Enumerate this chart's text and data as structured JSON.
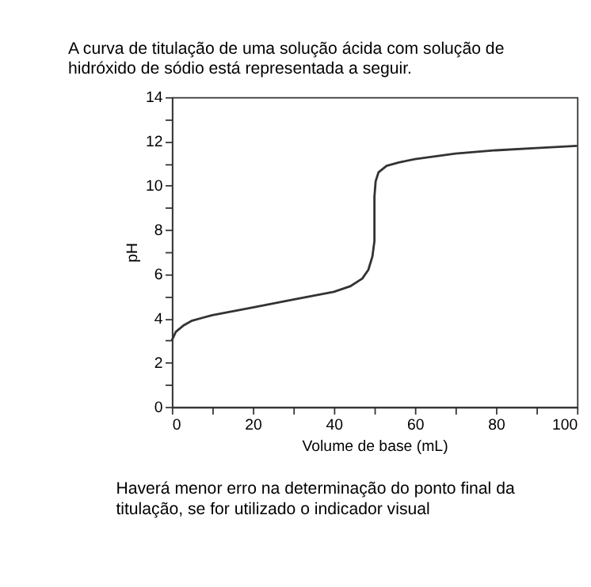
{
  "chart_data": {
    "type": "line",
    "title": "A curva de titulação de uma solução ácida com solução de hidróxido de sódio está representada a seguir.",
    "xlabel": "Volume de base (mL)",
    "ylabel": "pH",
    "x": [
      0,
      1,
      3,
      5,
      10,
      20,
      30,
      40,
      44,
      47,
      48.5,
      49.5,
      50,
      50,
      50,
      50.3,
      51,
      53,
      56,
      60,
      70,
      80,
      90,
      100
    ],
    "series": [
      {
        "color": "#333333",
        "values": [
          3.0,
          3.4,
          3.7,
          3.9,
          4.15,
          4.5,
          4.85,
          5.2,
          5.45,
          5.8,
          6.2,
          6.8,
          7.5,
          8.5,
          9.5,
          10.2,
          10.6,
          10.9,
          11.05,
          11.2,
          11.45,
          11.6,
          11.7,
          11.8
        ]
      }
    ],
    "xlim": [
      0,
      100
    ],
    "xticks": [
      0,
      {
        "value": 10,
        "label": null
      },
      20,
      {
        "value": 30,
        "label": null
      },
      40,
      {
        "value": 50,
        "label": null
      },
      60,
      {
        "value": 70,
        "label": null
      },
      80,
      {
        "value": 90,
        "label": null
      },
      100
    ],
    "ylim": [
      0,
      14
    ],
    "yticks": [
      0,
      {
        "value": 1,
        "label": null
      },
      2,
      {
        "value": 3,
        "label": null
      },
      4,
      {
        "value": 5,
        "label": null
      },
      6,
      {
        "value": 7,
        "label": null
      },
      8,
      {
        "value": 9,
        "label": null
      },
      10,
      {
        "value": 11,
        "label": null
      },
      12,
      {
        "value": 13,
        "label": null
      },
      14
    ],
    "grid": false,
    "marker": "none",
    "line_style": "solid",
    "annotations": [
      "Haverá menor erro na determinação do ponto final da titulação, se for utilizado o indicador visual"
    ]
  }
}
